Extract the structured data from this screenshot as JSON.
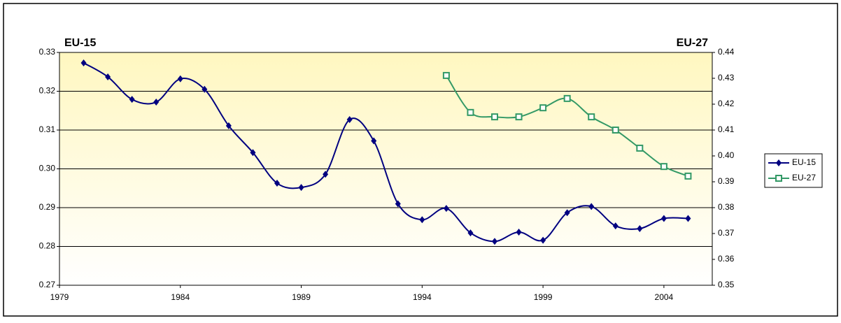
{
  "chart_data": {
    "type": "line",
    "y_label": "EU-15",
    "y2_label": "EU-27",
    "x": [
      1980,
      1981,
      1982,
      1983,
      1984,
      1985,
      1986,
      1987,
      1988,
      1989,
      1990,
      1991,
      1992,
      1993,
      1994,
      1995,
      1996,
      1997,
      1998,
      1999,
      2000,
      2001,
      2002,
      2003,
      2004,
      2005
    ],
    "series": [
      {
        "name": "EU-15",
        "color": "#000080",
        "marker": "diamond",
        "values": [
          0.3273,
          0.3237,
          0.3179,
          0.3172,
          0.3232,
          0.3205,
          0.3111,
          0.3042,
          0.2963,
          0.2952,
          0.2986,
          0.3127,
          0.3072,
          0.291,
          0.2869,
          0.2898,
          0.2835,
          0.2813,
          0.2837,
          0.2816,
          0.2887,
          0.2903,
          0.2853,
          0.2846,
          0.2872,
          0.2872
        ]
      },
      {
        "name": "EU-27",
        "color": "#339966",
        "marker": "square",
        "axis": "y2",
        "values": [
          null,
          null,
          null,
          null,
          null,
          null,
          null,
          null,
          null,
          null,
          null,
          null,
          null,
          null,
          null,
          0.4311,
          0.4168,
          0.4151,
          0.4151,
          0.4186,
          0.4222,
          0.4151,
          0.41,
          0.403,
          0.3959,
          0.3922
        ]
      }
    ],
    "xlim": [
      1979,
      2006
    ],
    "xticks": [
      1979,
      1984,
      1989,
      1994,
      1999,
      2004
    ],
    "ylim": [
      0.27,
      0.33
    ],
    "yticks": [
      0.27,
      0.28,
      0.29,
      {
        "value": 0.3,
        "label": "0.30"
      },
      0.31,
      0.32,
      0.33
    ],
    "y2lim": [
      0.35,
      0.44
    ],
    "y2ticks": [
      {
        "value": 0.35,
        "label": "0.35"
      },
      {
        "value": 0.36,
        "label": "0.36"
      },
      {
        "value": 0.37,
        "label": "0.37"
      },
      {
        "value": 0.38,
        "label": "0.38"
      },
      {
        "value": 0.39,
        "label": "0.39"
      },
      {
        "value": 0.4,
        "label": "0.40"
      },
      {
        "value": 0.41,
        "label": "0.41"
      },
      {
        "value": 0.42,
        "label": "0.42"
      },
      {
        "value": 0.43,
        "label": "0.43"
      },
      {
        "value": 0.44,
        "label": "0.44"
      }
    ],
    "grid": true,
    "legend": "right"
  }
}
